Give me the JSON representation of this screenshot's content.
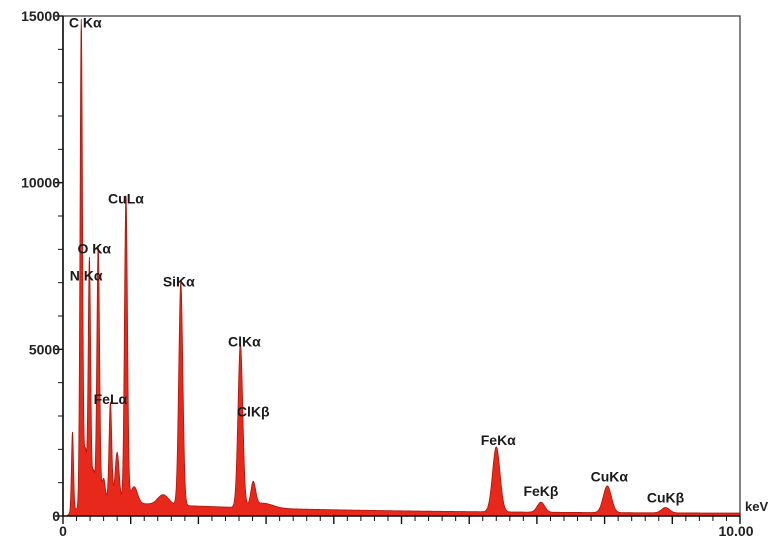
{
  "chart_data": {
    "type": "area",
    "xlabel": "keV",
    "ylabel": "",
    "xlim": [
      0,
      10
    ],
    "ylim": [
      0,
      15000
    ],
    "x_tick_labels": [
      "0",
      "10.00"
    ],
    "y_ticks": [
      0,
      5000,
      10000,
      15000
    ],
    "y_tick_labels": [
      "0",
      "5000",
      "10000",
      "15000"
    ],
    "grid": false,
    "fill_color": "#e8281a",
    "background": 120,
    "peaks": [
      {
        "label": "C Kα",
        "x": 0.27,
        "y": 14600,
        "width": 0.018
      },
      {
        "label": "N Kα",
        "x": 0.39,
        "y": 7300,
        "width": 0.018
      },
      {
        "label": "O Kα",
        "x": 0.52,
        "y": 7700,
        "width": 0.02
      },
      {
        "label": "FeLα",
        "x": 0.7,
        "y": 3000,
        "width": 0.02
      },
      {
        "label": "CuLα",
        "x": 0.93,
        "y": 9200,
        "width": 0.022
      },
      {
        "label": "SiKα",
        "x": 1.74,
        "y": 6700,
        "width": 0.03
      },
      {
        "label": "ClKα",
        "x": 2.62,
        "y": 4900,
        "width": 0.035
      },
      {
        "label": "ClKβ",
        "x": 2.81,
        "y": 700,
        "width": 0.035
      },
      {
        "label": "FeKα",
        "x": 6.4,
        "y": 1950,
        "width": 0.055
      },
      {
        "label": "FeKβ",
        "x": 7.06,
        "y": 300,
        "width": 0.055
      },
      {
        "label": "CuKα",
        "x": 8.04,
        "y": 800,
        "width": 0.06
      },
      {
        "label": "CuKβ",
        "x": 8.9,
        "y": 160,
        "width": 0.06
      }
    ],
    "minor_features": [
      {
        "x": 0.14,
        "y": 2400,
        "width": 0.015
      },
      {
        "x": 0.33,
        "y": 1600,
        "width": 0.02
      },
      {
        "x": 0.45,
        "y": 900,
        "width": 0.02
      },
      {
        "x": 0.6,
        "y": 700,
        "width": 0.025
      },
      {
        "x": 0.8,
        "y": 1500,
        "width": 0.03
      },
      {
        "x": 1.05,
        "y": 500,
        "width": 0.05
      },
      {
        "x": 1.48,
        "y": 300,
        "width": 0.08
      },
      {
        "x": 2.95,
        "y": 150,
        "width": 0.15
      }
    ]
  }
}
